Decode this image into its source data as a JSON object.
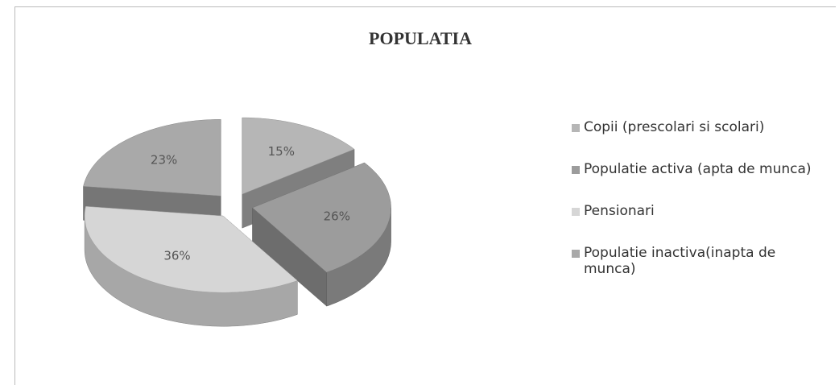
{
  "chart_data": {
    "type": "pie",
    "title": "POPULATIA",
    "categories": [
      "Copii (prescolari si scolari)",
      "Populatie activa (apta de munca)",
      "Pensionari",
      "Populatie inactiva(inapta de munca)"
    ],
    "values": [
      15,
      26,
      36,
      23
    ],
    "value_labels": [
      "15%",
      "26%",
      "36%",
      "23%"
    ],
    "colors": [
      "#b6b6b6",
      "#9c9c9c",
      "#d6d6d6",
      "#a9a9a9"
    ],
    "legend": "right"
  }
}
